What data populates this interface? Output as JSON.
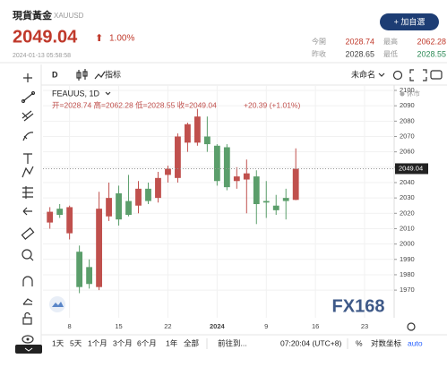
{
  "header": {
    "title": "現貨黃金",
    "symbol": "XAUUSD",
    "price": "2049.04",
    "arrow": "⬆",
    "change": "1.00%",
    "datetime": "2024-01-13 05:58:58",
    "add_button": "+ 加自選",
    "stats": [
      {
        "label": "今開",
        "value": "2028.74"
      },
      {
        "label": "最高",
        "value": "2062.28"
      },
      {
        "label": "昨收",
        "value": "2028.65"
      },
      {
        "label": "最低",
        "value": "2028.55"
      }
    ]
  },
  "toolbar": {
    "interval": "D",
    "indicators": "指标",
    "layout": "未命名"
  },
  "chart_data": {
    "type": "candlestick",
    "symbol_line": "FEAUUS, 1D",
    "ohlc_line": "开=2028.74 高=2062.28 低=2028.55 收=2049.04",
    "change_line": "+20.39 (+1.01%)",
    "status": "休市",
    "watermark": "FX168",
    "up_color": "#c0504d",
    "down_color": "#5b9e6b",
    "grid": true,
    "open": [
      2014,
      2023,
      2007,
      1995,
      1985,
      1972,
      2018,
      2033,
      2028,
      2025,
      2036,
      2030,
      2045,
      2043,
      2066,
      2066,
      2070,
      2064,
      2063,
      2041,
      2042,
      2044,
      2028,
      2025,
      2030,
      2028.74
    ],
    "high": [
      2024,
      2026,
      2025,
      1999,
      1990,
      2034,
      2040,
      2038,
      2045,
      2041,
      2040,
      2047,
      2051,
      2072,
      2079,
      2088,
      2083,
      2065,
      2065,
      2050,
      2055,
      2048,
      2041,
      2032,
      2036,
      2062.28
    ],
    "low": [
      2010,
      2017,
      2003,
      1968,
      1971,
      1970,
      2015,
      2012,
      2018,
      2020,
      2026,
      2027,
      2040,
      2040,
      2060,
      2064,
      2060,
      2038,
      2035,
      2036,
      2020,
      2013,
      2017,
      2019,
      2016,
      2028.55
    ],
    "close": [
      2021,
      2019,
      2024,
      1972,
      1974,
      2023,
      2030,
      2016,
      2019,
      2036,
      2028,
      2043,
      2049,
      2070,
      2078,
      2083,
      2065,
      2041,
      2037,
      2044,
      2046,
      2026,
      2027,
      2022,
      2028,
      2049.04
    ],
    "xlim": [
      -0.7,
      35
    ],
    "xticks": [
      {
        "value": 2,
        "label": "8"
      },
      {
        "value": 7,
        "label": "15"
      },
      {
        "value": 12,
        "label": "22"
      },
      {
        "value": 17,
        "label": "2024"
      },
      {
        "value": 22,
        "label": "9"
      },
      {
        "value": 27,
        "label": "16"
      },
      {
        "value": 32,
        "label": "23"
      }
    ],
    "ylim": [
      1952,
      2103.5
    ],
    "yticks": [
      1970,
      1980,
      1990,
      2000,
      2010,
      2020,
      2030,
      2040,
      2050,
      2060,
      2070,
      2080,
      2090,
      2100
    ]
  },
  "bottom_bar": {
    "ranges": [
      "1天",
      "5天",
      "1个月",
      "3个月",
      "6个月",
      "1年",
      "全部"
    ],
    "goto": "前往到...",
    "time": "07:20:04 (UTC+8)",
    "percent": "%",
    "log": "对数坐标",
    "auto": "auto"
  }
}
